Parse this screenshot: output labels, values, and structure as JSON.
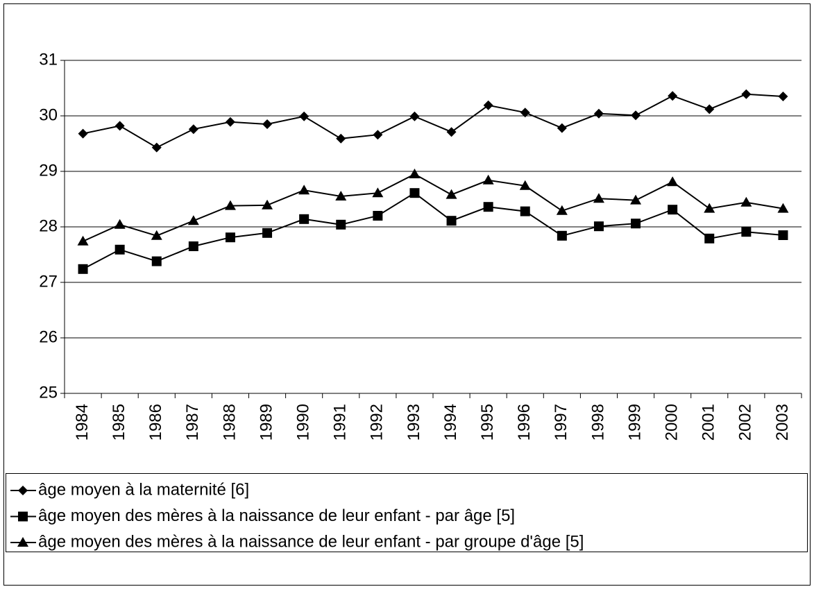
{
  "chart_data": {
    "type": "line",
    "categories": [
      "1984",
      "1985",
      "1986",
      "1987",
      "1988",
      "1989",
      "1990",
      "1991",
      "1992",
      "1993",
      "1994",
      "1995",
      "1996",
      "1997",
      "1998",
      "1999",
      "2000",
      "2001",
      "2002",
      "2003"
    ],
    "series": [
      {
        "name": "âge moyen à la maternité [6]",
        "color": "#000000",
        "marker": "diamond",
        "values": [
          29.68,
          29.82,
          29.43,
          29.76,
          29.89,
          29.85,
          29.99,
          29.59,
          29.66,
          29.99,
          29.71,
          30.19,
          30.06,
          29.78,
          30.04,
          30.01,
          30.36,
          30.12,
          30.39,
          30.35
        ]
      },
      {
        "name": "âge moyen des mères à la naissance de leur enfant - par âge [5]",
        "color": "#000000",
        "marker": "square",
        "values": [
          27.24,
          27.59,
          27.38,
          27.65,
          27.81,
          27.89,
          28.14,
          28.04,
          28.2,
          28.61,
          28.11,
          28.36,
          28.28,
          27.84,
          28.01,
          28.06,
          28.31,
          27.79,
          27.91,
          27.85
        ]
      },
      {
        "name": "âge moyen des mères à la naissance de leur enfant - par groupe d'âge [5]",
        "color": "#000000",
        "marker": "triangle",
        "values": [
          27.74,
          28.04,
          27.84,
          28.11,
          28.38,
          28.39,
          28.66,
          28.55,
          28.61,
          28.95,
          28.58,
          28.84,
          28.74,
          28.29,
          28.51,
          28.48,
          28.81,
          28.33,
          28.44,
          28.33
        ]
      }
    ],
    "ylim": [
      25,
      31
    ],
    "yticks": [
      25,
      26,
      27,
      28,
      29,
      30,
      31
    ],
    "grid": true,
    "legend": "bottom"
  }
}
